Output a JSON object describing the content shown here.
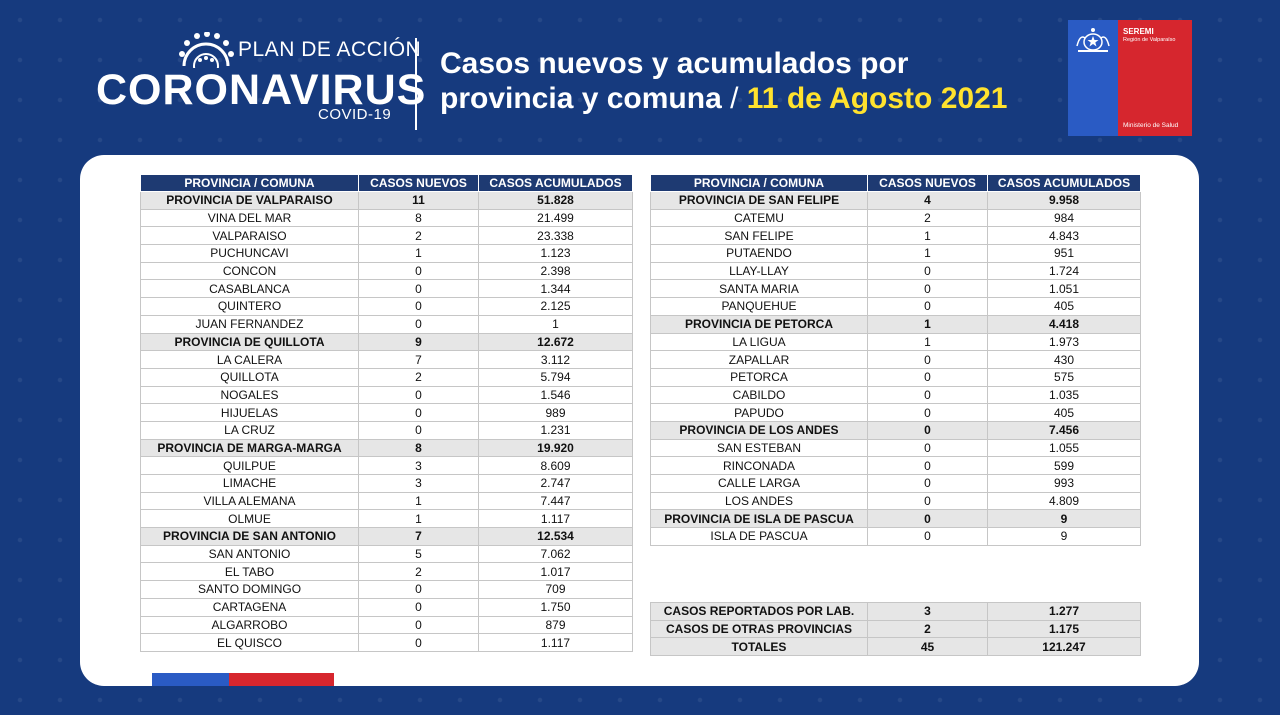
{
  "header": {
    "logo_plan": "PLAN DE ACCIÓN",
    "logo_main": "CORONAVIRUS",
    "logo_sub": "COVID-19",
    "title_line1": "Casos nuevos y acumulados por",
    "title_line2_prefix": "provincia y comuna",
    "title_separator": " / ",
    "title_date": "11 de Agosto 2021"
  },
  "seremi": {
    "name": "SEREMI",
    "region": "Región de Valparaíso",
    "ministry": "Ministerio de Salud"
  },
  "columns": [
    "PROVINCIA / COMUNA",
    "CASOS NUEVOS",
    "CASOS ACUMULADOS"
  ],
  "left_table": [
    {
      "name": "PROVINCIA DE VALPARAISO",
      "new": "11",
      "total": "51.828",
      "type": "prov"
    },
    {
      "name": "VINA DEL MAR",
      "new": "8",
      "total": "21.499",
      "type": "com"
    },
    {
      "name": "VALPARAISO",
      "new": "2",
      "total": "23.338",
      "type": "com"
    },
    {
      "name": "PUCHUNCAVI",
      "new": "1",
      "total": "1.123",
      "type": "com"
    },
    {
      "name": "CONCON",
      "new": "0",
      "total": "2.398",
      "type": "com"
    },
    {
      "name": "CASABLANCA",
      "new": "0",
      "total": "1.344",
      "type": "com"
    },
    {
      "name": "QUINTERO",
      "new": "0",
      "total": "2.125",
      "type": "com"
    },
    {
      "name": "JUAN FERNANDEZ",
      "new": "0",
      "total": "1",
      "type": "com"
    },
    {
      "name": "PROVINCIA DE QUILLOTA",
      "new": "9",
      "total": "12.672",
      "type": "prov"
    },
    {
      "name": "LA CALERA",
      "new": "7",
      "total": "3.112",
      "type": "com"
    },
    {
      "name": "QUILLOTA",
      "new": "2",
      "total": "5.794",
      "type": "com"
    },
    {
      "name": "NOGALES",
      "new": "0",
      "total": "1.546",
      "type": "com"
    },
    {
      "name": "HIJUELAS",
      "new": "0",
      "total": "989",
      "type": "com"
    },
    {
      "name": "LA CRUZ",
      "new": "0",
      "total": "1.231",
      "type": "com"
    },
    {
      "name": "PROVINCIA DE MARGA-MARGA",
      "new": "8",
      "total": "19.920",
      "type": "prov"
    },
    {
      "name": "QUILPUE",
      "new": "3",
      "total": "8.609",
      "type": "com"
    },
    {
      "name": "LIMACHE",
      "new": "3",
      "total": "2.747",
      "type": "com"
    },
    {
      "name": "VILLA ALEMANA",
      "new": "1",
      "total": "7.447",
      "type": "com"
    },
    {
      "name": "OLMUE",
      "new": "1",
      "total": "1.117",
      "type": "com"
    },
    {
      "name": "PROVINCIA DE SAN ANTONIO",
      "new": "7",
      "total": "12.534",
      "type": "prov"
    },
    {
      "name": "SAN ANTONIO",
      "new": "5",
      "total": "7.062",
      "type": "com"
    },
    {
      "name": "EL TABO",
      "new": "2",
      "total": "1.017",
      "type": "com"
    },
    {
      "name": "SANTO DOMINGO",
      "new": "0",
      "total": "709",
      "type": "com"
    },
    {
      "name": "CARTAGENA",
      "new": "0",
      "total": "1.750",
      "type": "com"
    },
    {
      "name": "ALGARROBO",
      "new": "0",
      "total": "879",
      "type": "com"
    },
    {
      "name": "EL QUISCO",
      "new": "0",
      "total": "1.117",
      "type": "com"
    }
  ],
  "right_table": [
    {
      "name": "PROVINCIA DE SAN FELIPE",
      "new": "4",
      "total": "9.958",
      "type": "prov"
    },
    {
      "name": "CATEMU",
      "new": "2",
      "total": "984",
      "type": "com"
    },
    {
      "name": "SAN FELIPE",
      "new": "1",
      "total": "4.843",
      "type": "com"
    },
    {
      "name": "PUTAENDO",
      "new": "1",
      "total": "951",
      "type": "com"
    },
    {
      "name": "LLAY-LLAY",
      "new": "0",
      "total": "1.724",
      "type": "com"
    },
    {
      "name": "SANTA MARIA",
      "new": "0",
      "total": "1.051",
      "type": "com"
    },
    {
      "name": "PANQUEHUE",
      "new": "0",
      "total": "405",
      "type": "com"
    },
    {
      "name": "PROVINCIA DE PETORCA",
      "new": "1",
      "total": "4.418",
      "type": "prov"
    },
    {
      "name": "LA LIGUA",
      "new": "1",
      "total": "1.973",
      "type": "com"
    },
    {
      "name": "ZAPALLAR",
      "new": "0",
      "total": "430",
      "type": "com"
    },
    {
      "name": "PETORCA",
      "new": "0",
      "total": "575",
      "type": "com"
    },
    {
      "name": "CABILDO",
      "new": "0",
      "total": "1.035",
      "type": "com"
    },
    {
      "name": "PAPUDO",
      "new": "0",
      "total": "405",
      "type": "com"
    },
    {
      "name": "PROVINCIA DE LOS ANDES",
      "new": "0",
      "total": "7.456",
      "type": "prov"
    },
    {
      "name": "SAN ESTEBAN",
      "new": "0",
      "total": "1.055",
      "type": "com"
    },
    {
      "name": "RINCONADA",
      "new": "0",
      "total": "599",
      "type": "com"
    },
    {
      "name": "CALLE LARGA",
      "new": "0",
      "total": "993",
      "type": "com"
    },
    {
      "name": "LOS ANDES",
      "new": "0",
      "total": "4.809",
      "type": "com"
    },
    {
      "name": "PROVINCIA DE ISLA DE PASCUA",
      "new": "0",
      "total": "9",
      "type": "prov"
    },
    {
      "name": "ISLA DE PASCUA",
      "new": "0",
      "total": "9",
      "type": "com"
    }
  ],
  "totals_table": [
    {
      "name": "CASOS REPORTADOS POR LAB.",
      "new": "3",
      "total": "1.277"
    },
    {
      "name": "CASOS DE OTRAS PROVINCIAS",
      "new": "2",
      "total": "1.175"
    },
    {
      "name": "TOTALES",
      "new": "45",
      "total": "121.247"
    }
  ],
  "colors": {
    "background": "#163a7e",
    "header_row": "#1e3a72",
    "province_row": "#e6e6e6",
    "date_highlight": "#ffe22e",
    "gov_blue": "#2a5bc4",
    "gov_red": "#d6262e"
  }
}
